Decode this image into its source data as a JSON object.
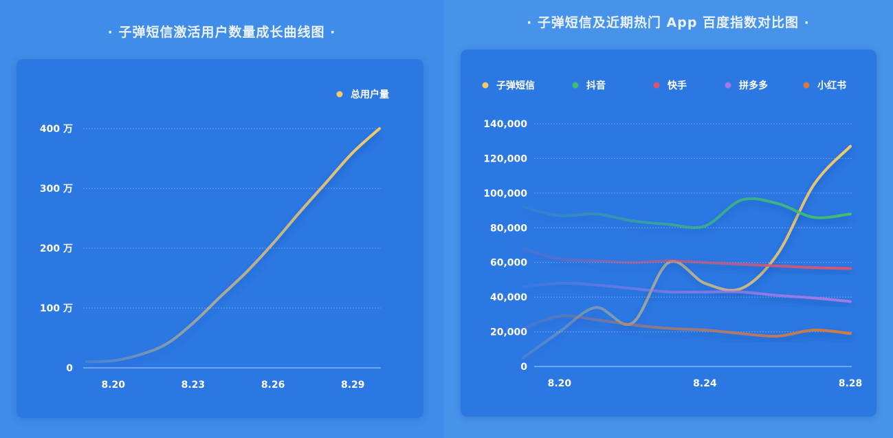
{
  "left_title": "· 子弹短信激活用户数量成长曲线图 ·",
  "right_title": "· 子弹短信及近期热门 App 百度指数对比图 ·",
  "colors": {
    "子弹短信": "#f4cb6a",
    "抖音": "#3fbf6e",
    "快手": "#d9566e",
    "拼多多": "#a27ae6",
    "小红书": "#d87a3e",
    "总用户量": "#f4cb6a"
  },
  "chart_data": [
    {
      "type": "line",
      "title": "· 子弹短信激活用户数量成长曲线图 ·",
      "x": [
        0,
        1,
        2,
        3,
        4,
        5,
        6,
        7,
        8,
        9,
        10,
        11
      ],
      "x_tick_labels": [
        "8.20",
        "8.23",
        "8.26",
        "8.29"
      ],
      "x_tick_positions": [
        1,
        4,
        7,
        10
      ],
      "ylim": [
        0,
        400
      ],
      "y_ticks": [
        0,
        100,
        200,
        300,
        400
      ],
      "y_tick_labels": [
        "0",
        "100 万",
        "200 万",
        "300 万",
        "400 万"
      ],
      "series": [
        {
          "name": "总用户量",
          "values": [
            10,
            12,
            22,
            40,
            75,
            118,
            160,
            208,
            260,
            310,
            360,
            400
          ]
        }
      ],
      "legend_position": "top-right",
      "grid": true
    },
    {
      "type": "line",
      "title": "· 子弹短信及近期热门 App 百度指数对比图 ·",
      "x": [
        0,
        1,
        2,
        3,
        4,
        5,
        6,
        7,
        8,
        9
      ],
      "x_tick_labels": [
        "8.20",
        "8.24",
        "8.28"
      ],
      "x_tick_positions": [
        1,
        5,
        9
      ],
      "ylim": [
        0,
        140000
      ],
      "y_ticks": [
        0,
        20000,
        40000,
        60000,
        80000,
        100000,
        120000,
        140000
      ],
      "y_tick_labels": [
        "0",
        "20,000",
        "40,000",
        "60,000",
        "80,000",
        "100,000",
        "120,000",
        "140,000"
      ],
      "series": [
        {
          "name": "子弹短信",
          "values": [
            5000,
            20000,
            34000,
            25000,
            60000,
            48000,
            45000,
            65000,
            105000,
            127000
          ]
        },
        {
          "name": "抖音",
          "values": [
            92000,
            87000,
            88000,
            84000,
            82000,
            81000,
            96000,
            94000,
            86000,
            88000
          ]
        },
        {
          "name": "快手",
          "values": [
            68000,
            62000,
            61000,
            60000,
            61000,
            60000,
            59000,
            58000,
            57000,
            56500
          ]
        },
        {
          "name": "拼多多",
          "values": [
            46000,
            48000,
            47000,
            45000,
            43000,
            43000,
            43000,
            41000,
            39500,
            37500
          ]
        },
        {
          "name": "小红书",
          "values": [
            22000,
            29000,
            27000,
            24000,
            22000,
            21000,
            19000,
            17500,
            21000,
            19000
          ]
        }
      ],
      "legend_position": "top",
      "grid": true
    }
  ]
}
